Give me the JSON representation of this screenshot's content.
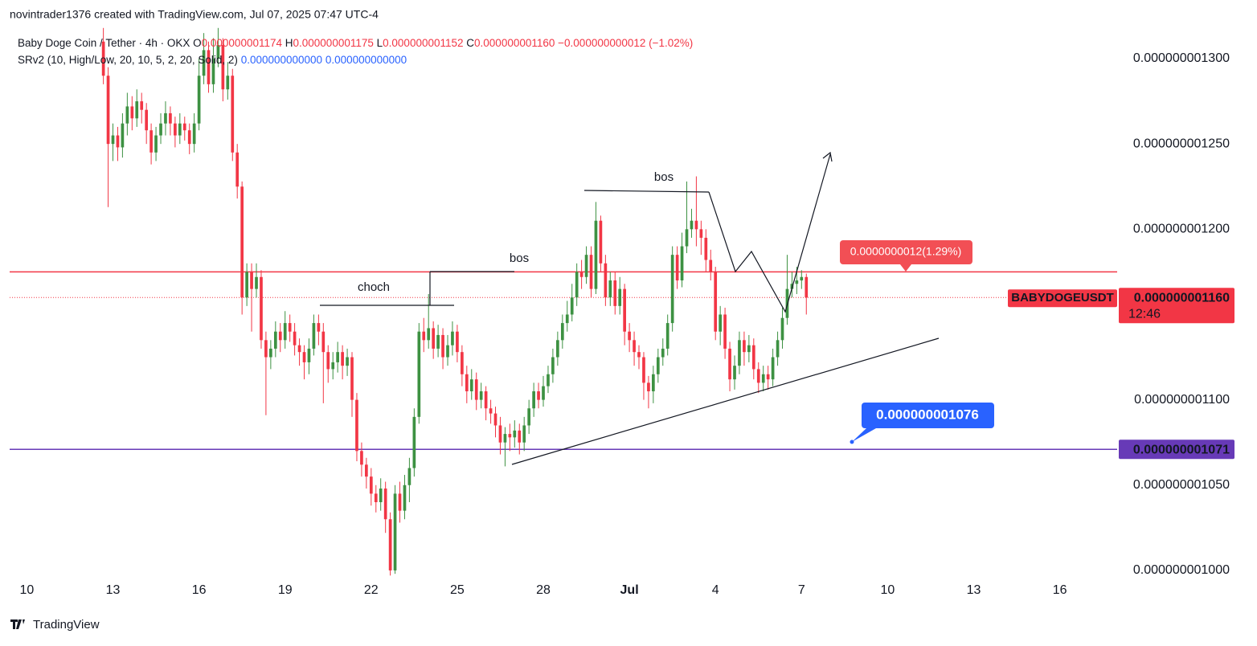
{
  "watermark": "novintrader1376 created with TradingView.com, Jul 07, 2025 07:47 UTC-4",
  "footer": "TradingView",
  "chart_data": {
    "type": "candlestick",
    "symbol": "Baby Doge Coin / Tether · 4h · OKX",
    "ohlc_keys": [
      "O",
      "H",
      "L",
      "C"
    ],
    "ohlc_values": [
      "0.000000001174",
      "0.000000001175",
      "0.000000001152",
      "0.000000001160"
    ],
    "change": "−0.000000000012 (−1.02%)",
    "indicator": "SRv2 (10, High/Low, 20, 10, 5, 2, 20, Solid, 2)",
    "indicator_values": [
      "0.000000000000",
      "0.000000000000"
    ],
    "up_color": "#3d9142",
    "down_color": "#f23645",
    "x": [
      12.667,
      12.833,
      13,
      13.167,
      13.333,
      13.5,
      13.667,
      13.833,
      14,
      14.167,
      14.333,
      14.5,
      14.667,
      14.833,
      15,
      15.167,
      15.333,
      15.5,
      15.667,
      15.833,
      16,
      16.167,
      16.333,
      16.5,
      16.667,
      16.833,
      17,
      17.167,
      17.333,
      17.5,
      17.667,
      17.833,
      18,
      18.167,
      18.333,
      18.5,
      18.667,
      18.833,
      19,
      19.167,
      19.333,
      19.5,
      19.667,
      19.833,
      20,
      20.167,
      20.333,
      20.5,
      20.667,
      20.833,
      21,
      21.167,
      21.333,
      21.5,
      21.667,
      21.833,
      22,
      22.167,
      22.333,
      22.5,
      22.667,
      22.833,
      23,
      23.167,
      23.333,
      23.5,
      23.667,
      23.833,
      24,
      24.167,
      24.333,
      24.5,
      24.667,
      24.833,
      25,
      25.167,
      25.333,
      25.5,
      25.667,
      25.833,
      26,
      26.167,
      26.333,
      26.5,
      26.667,
      26.833,
      27,
      27.167,
      27.333,
      27.5,
      27.667,
      27.833,
      28,
      28.167,
      28.333,
      28.5,
      28.667,
      28.833,
      29,
      29.167,
      29.333,
      29.5,
      29.667,
      29.833,
      30,
      30.167,
      30.333,
      30.5,
      30.667,
      30.833,
      31,
      31.167,
      31.333,
      31.5,
      31.667,
      31.833,
      32,
      32.167,
      32.333,
      32.5,
      32.667,
      32.833,
      33,
      33.167,
      33.333,
      33.5,
      33.667,
      33.833,
      34,
      34.167,
      34.333,
      34.5,
      34.667,
      34.833,
      35,
      35.167,
      35.333,
      35.5,
      35.667,
      35.833,
      36,
      36.167,
      36.333,
      36.5,
      36.667,
      36.833,
      37,
      37.167
    ],
    "open": [
      1.31e-09,
      1.29e-09,
      1.25e-09,
      1.255e-09,
      1.248e-09,
      1.262e-09,
      1.272e-09,
      1.265e-09,
      1.275e-09,
      1.27e-09,
      1.258e-09,
      1.245e-09,
      1.255e-09,
      1.262e-09,
      1.268e-09,
      1.262e-09,
      1.255e-09,
      1.262e-09,
      1.258e-09,
      1.25e-09,
      1.262e-09,
      1.29e-09,
      1.305e-09,
      1.285e-09,
      1.3e-09,
      1.308e-09,
      1.282e-09,
      1.29e-09,
      1.245e-09,
      1.225e-09,
      1.16e-09,
      1.175e-09,
      1.165e-09,
      1.172e-09,
      1.135e-09,
      1.125e-09,
      1.13e-09,
      1.14e-09,
      1.135e-09,
      1.145e-09,
      1.14e-09,
      1.132e-09,
      1.128e-09,
      1.122e-09,
      1.13e-09,
      1.145e-09,
      1.14e-09,
      1.128e-09,
      1.118e-09,
      1.122e-09,
      1.128e-09,
      1.12e-09,
      1.125e-09,
      1.1e-09,
      1.07e-09,
      1.062e-09,
      1.055e-09,
      1.045e-09,
      1.04e-09,
      1.048e-09,
      1.03e-09,
      1e-09,
      1.045e-09,
      1.035e-09,
      1.05e-09,
      1.06e-09,
      1.09e-09,
      1.14e-09,
      1.135e-09,
      1.142e-09,
      1.13e-09,
      1.138e-09,
      1.125e-09,
      1.132e-09,
      1.14e-09,
      1.128e-09,
      1.115e-09,
      1.105e-09,
      1.112e-09,
      1.1e-09,
      1.105e-09,
      1.095e-09,
      1.092e-09,
      1.085e-09,
      1.075e-09,
      1.08e-09,
      1.078e-09,
      1.082e-09,
      1.075e-09,
      1.085e-09,
      1.095e-09,
      1.105e-09,
      1.1e-09,
      1.108e-09,
      1.115e-09,
      1.125e-09,
      1.135e-09,
      1.145e-09,
      1.15e-09,
      1.16e-09,
      1.175e-09,
      1.172e-09,
      1.185e-09,
      1.165e-09,
      1.205e-09,
      1.18e-09,
      1.16e-09,
      1.17e-09,
      1.155e-09,
      1.165e-09,
      1.14e-09,
      1.135e-09,
      1.128e-09,
      1.125e-09,
      1.11e-09,
      1.105e-09,
      1.115e-09,
      1.125e-09,
      1.13e-09,
      1.145e-09,
      1.185e-09,
      1.17e-09,
      1.19e-09,
      1.2e-09,
      1.205e-09,
      1.2e-09,
      1.195e-09,
      1.182e-09,
      1.175e-09,
      1.14e-09,
      1.15e-09,
      1.13e-09,
      1.112e-09,
      1.12e-09,
      1.135e-09,
      1.128e-09,
      1.132e-09,
      1.118e-09,
      1.11e-09,
      1.115e-09,
      1.112e-09,
      1.125e-09,
      1.135e-09,
      1.148e-09,
      1.165e-09,
      1.168e-09,
      1.17e-09,
      1.172e-09
    ],
    "high": [
      1.318e-09,
      1.295e-09,
      1.262e-09,
      1.26e-09,
      1.268e-09,
      1.28e-09,
      1.278e-09,
      1.282e-09,
      1.28e-09,
      1.274e-09,
      1.262e-09,
      1.26e-09,
      1.268e-09,
      1.275e-09,
      1.272e-09,
      1.266e-09,
      1.268e-09,
      1.266e-09,
      1.262e-09,
      1.268e-09,
      1.3e-09,
      1.315e-09,
      1.31e-09,
      1.312e-09,
      1.318e-09,
      1.312e-09,
      1.298e-09,
      1.294e-09,
      1.25e-09,
      1.228e-09,
      1.18e-09,
      1.18e-09,
      1.18e-09,
      1.176e-09,
      1.14e-09,
      1.135e-09,
      1.146e-09,
      1.145e-09,
      1.152e-09,
      1.15e-09,
      1.145e-09,
      1.136e-09,
      1.132e-09,
      1.136e-09,
      1.15e-09,
      1.15e-09,
      1.145e-09,
      1.132e-09,
      1.128e-09,
      1.134e-09,
      1.132e-09,
      1.13e-09,
      1.128e-09,
      1.104e-09,
      1.075e-09,
      1.066e-09,
      1.06e-09,
      1.05e-09,
      1.054e-09,
      1.052e-09,
      1.034e-09,
      1.05e-09,
      1.052e-09,
      1.056e-09,
      1.066e-09,
      1.095e-09,
      1.145e-09,
      1.148e-09,
      1.162e-09,
      1.146e-09,
      1.144e-09,
      1.142e-09,
      1.138e-09,
      1.146e-09,
      1.144e-09,
      1.132e-09,
      1.12e-09,
      1.118e-09,
      1.116e-09,
      1.11e-09,
      1.108e-09,
      1.1e-09,
      1.096e-09,
      1.09e-09,
      1.084e-09,
      1.086e-09,
      1.088e-09,
      1.086e-09,
      1.09e-09,
      1.1e-09,
      1.11e-09,
      1.11e-09,
      1.114e-09,
      1.12e-09,
      1.13e-09,
      1.14e-09,
      1.15e-09,
      1.158e-09,
      1.168e-09,
      1.18e-09,
      1.182e-09,
      1.19e-09,
      1.19e-09,
      1.216e-09,
      1.208e-09,
      1.185e-09,
      1.175e-09,
      1.175e-09,
      1.172e-09,
      1.168e-09,
      1.145e-09,
      1.14e-09,
      1.132e-09,
      1.128e-09,
      1.114e-09,
      1.12e-09,
      1.13e-09,
      1.136e-09,
      1.15e-09,
      1.19e-09,
      1.19e-09,
      1.198e-09,
      1.228e-09,
      1.212e-09,
      1.231e-09,
      1.205e-09,
      1.2e-09,
      1.188e-09,
      1.178e-09,
      1.155e-09,
      1.154e-09,
      1.134e-09,
      1.126e-09,
      1.14e-09,
      1.14e-09,
      1.138e-09,
      1.136e-09,
      1.122e-09,
      1.12e-09,
      1.12e-09,
      1.13e-09,
      1.14e-09,
      1.154e-09,
      1.185e-09,
      1.175e-09,
      1.178e-09,
      1.176e-09,
      1.174e-09
    ],
    "low": [
      1.285e-09,
      1.213e-09,
      1.24e-09,
      1.24e-09,
      1.242e-09,
      1.255e-09,
      1.258e-09,
      1.26e-09,
      1.262e-09,
      1.25e-09,
      1.238e-09,
      1.24e-09,
      1.25e-09,
      1.255e-09,
      1.255e-09,
      1.248e-09,
      1.25e-09,
      1.252e-09,
      1.244e-09,
      1.245e-09,
      1.258e-09,
      1.285e-09,
      1.28e-09,
      1.28e-09,
      1.295e-09,
      1.275e-09,
      1.276e-09,
      1.24e-09,
      1.218e-09,
      1.15e-09,
      1.155e-09,
      1.14e-09,
      1.16e-09,
      1.13e-09,
      1.091e-09,
      1.118e-09,
      1.125e-09,
      1.128e-09,
      1.13e-09,
      1.134e-09,
      1.126e-09,
      1.12e-09,
      1.112e-09,
      1.115e-09,
      1.126e-09,
      1.132e-09,
      1.098e-09,
      1.11e-09,
      1.112e-09,
      1.116e-09,
      1.112e-09,
      1.114e-09,
      1.09e-09,
      1.064e-09,
      1.055e-09,
      1.048e-09,
      1.038e-09,
      1.034e-09,
      1.035e-09,
      1.022e-09,
      9.97e-10,
      9.98e-10,
      1.028e-09,
      1.03e-09,
      1.04e-09,
      1.055e-09,
      1.086e-09,
      1.128e-09,
      1.13e-09,
      1.124e-09,
      1.125e-09,
      1.118e-09,
      1.12e-09,
      1.126e-09,
      1.122e-09,
      1.108e-09,
      1.098e-09,
      1.1e-09,
      1.094e-09,
      1.095e-09,
      1.088e-09,
      1.086e-09,
      1.078e-09,
      1.068e-09,
      1.061e-09,
      1.07e-09,
      1.072e-09,
      1.068e-09,
      1.07e-09,
      1.08e-09,
      1.09e-09,
      1.095e-09,
      1.096e-09,
      1.104e-09,
      1.11e-09,
      1.12e-09,
      1.13e-09,
      1.14e-09,
      1.146e-09,
      1.155e-09,
      1.165e-09,
      1.168e-09,
      1.16e-09,
      1.162e-09,
      1.175e-09,
      1.155e-09,
      1.155e-09,
      1.15e-09,
      1.15e-09,
      1.132e-09,
      1.128e-09,
      1.12e-09,
      1.118e-09,
      1.1e-09,
      1.095e-09,
      1.098e-09,
      1.11e-09,
      1.12e-09,
      1.126e-09,
      1.14e-09,
      1.165e-09,
      1.166e-09,
      1.186e-09,
      1.195e-09,
      1.19e-09,
      1.185e-09,
      1.175e-09,
      1.17e-09,
      1.135e-09,
      1.132e-09,
      1.124e-09,
      1.105e-09,
      1.106e-09,
      1.115e-09,
      1.12e-09,
      1.122e-09,
      1.112e-09,
      1.104e-09,
      1.105e-09,
      1.106e-09,
      1.108e-09,
      1.12e-09,
      1.13e-09,
      1.144e-09,
      1.16e-09,
      1.162e-09,
      1.165e-09,
      1.15e-09
    ],
    "close": [
      1.29e-09,
      1.25e-09,
      1.255e-09,
      1.248e-09,
      1.262e-09,
      1.272e-09,
      1.265e-09,
      1.275e-09,
      1.27e-09,
      1.258e-09,
      1.245e-09,
      1.255e-09,
      1.262e-09,
      1.268e-09,
      1.262e-09,
      1.255e-09,
      1.262e-09,
      1.258e-09,
      1.25e-09,
      1.262e-09,
      1.29e-09,
      1.305e-09,
      1.285e-09,
      1.3e-09,
      1.308e-09,
      1.282e-09,
      1.29e-09,
      1.245e-09,
      1.225e-09,
      1.16e-09,
      1.175e-09,
      1.165e-09,
      1.172e-09,
      1.135e-09,
      1.125e-09,
      1.13e-09,
      1.14e-09,
      1.135e-09,
      1.145e-09,
      1.14e-09,
      1.132e-09,
      1.128e-09,
      1.122e-09,
      1.13e-09,
      1.145e-09,
      1.14e-09,
      1.128e-09,
      1.118e-09,
      1.122e-09,
      1.128e-09,
      1.12e-09,
      1.125e-09,
      1.1e-09,
      1.07e-09,
      1.062e-09,
      1.055e-09,
      1.045e-09,
      1.04e-09,
      1.048e-09,
      1.03e-09,
      1e-09,
      1.045e-09,
      1.035e-09,
      1.05e-09,
      1.06e-09,
      1.09e-09,
      1.14e-09,
      1.135e-09,
      1.142e-09,
      1.13e-09,
      1.138e-09,
      1.125e-09,
      1.132e-09,
      1.14e-09,
      1.128e-09,
      1.115e-09,
      1.105e-09,
      1.112e-09,
      1.1e-09,
      1.105e-09,
      1.095e-09,
      1.092e-09,
      1.085e-09,
      1.075e-09,
      1.08e-09,
      1.078e-09,
      1.082e-09,
      1.075e-09,
      1.085e-09,
      1.095e-09,
      1.105e-09,
      1.1e-09,
      1.108e-09,
      1.115e-09,
      1.125e-09,
      1.135e-09,
      1.145e-09,
      1.15e-09,
      1.16e-09,
      1.175e-09,
      1.172e-09,
      1.185e-09,
      1.165e-09,
      1.205e-09,
      1.18e-09,
      1.16e-09,
      1.17e-09,
      1.155e-09,
      1.165e-09,
      1.14e-09,
      1.135e-09,
      1.128e-09,
      1.125e-09,
      1.11e-09,
      1.105e-09,
      1.115e-09,
      1.125e-09,
      1.13e-09,
      1.145e-09,
      1.185e-09,
      1.17e-09,
      1.19e-09,
      1.2e-09,
      1.205e-09,
      1.2e-09,
      1.195e-09,
      1.182e-09,
      1.175e-09,
      1.14e-09,
      1.15e-09,
      1.13e-09,
      1.112e-09,
      1.12e-09,
      1.135e-09,
      1.128e-09,
      1.132e-09,
      1.118e-09,
      1.11e-09,
      1.115e-09,
      1.112e-09,
      1.125e-09,
      1.135e-09,
      1.148e-09,
      1.165e-09,
      1.168e-09,
      1.17e-09,
      1.172e-09,
      1.16e-09
    ],
    "xlim": [
      9.4,
      48
    ],
    "xticks": [
      10,
      13,
      16,
      19,
      22,
      25,
      28,
      {
        "value": 31,
        "label": "Jul"
      },
      {
        "value": 34,
        "label": "4"
      },
      {
        "value": 37,
        "label": "7"
      },
      {
        "value": 40,
        "label": "10"
      },
      {
        "value": 43,
        "label": "13"
      },
      {
        "value": 46,
        "label": "16"
      }
    ],
    "ylim": [
      9.962e-10,
      1.3179e-09
    ],
    "yticks": [
      {
        "value": 1e-09,
        "label": "0.000000001000"
      },
      {
        "value": 1.05e-09,
        "label": "0.000000001050"
      },
      {
        "value": 1.1e-09,
        "label": "0.000000001100"
      },
      {
        "value": 1.2e-09,
        "label": "0.000000001200"
      },
      {
        "value": 1.25e-09,
        "label": "0.000000001250"
      },
      {
        "value": 1.3e-09,
        "label": "0.000000001300"
      }
    ],
    "grid": false,
    "resistance": {
      "value": 1.175e-09,
      "color": "#f23645"
    },
    "support": {
      "value": 1.071e-09,
      "label": "0.000000001071",
      "color": "#673ab7"
    },
    "last_price": {
      "value": 1.16e-09,
      "label": "0.000000001160",
      "symbol": "BABYDOGEUSDT",
      "countdown": "12:46",
      "color": "#f23645"
    },
    "annotations": [
      "choch",
      "bos",
      "bos"
    ],
    "callouts": [
      {
        "text": "0.0000000012(1.29%)",
        "color": "#f24f55"
      },
      {
        "text": "0.000000001076",
        "color": "#2962ff"
      }
    ]
  }
}
